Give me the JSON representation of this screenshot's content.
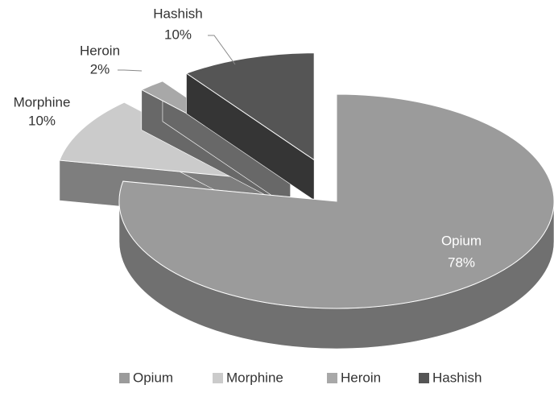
{
  "chart_data": {
    "type": "pie",
    "categories": [
      "Opium",
      "Morphine",
      "Heroin",
      "Hashish"
    ],
    "values": [
      78,
      10,
      2,
      10
    ],
    "value_labels": [
      "78%",
      "10%",
      "2%",
      "10%"
    ],
    "colors": [
      "#9b9b9b",
      "#cbcbcb",
      "#a8a8a8",
      "#555555"
    ],
    "legend": "bottom",
    "three_d": true,
    "exploded": [
      false,
      true,
      true,
      true
    ]
  }
}
